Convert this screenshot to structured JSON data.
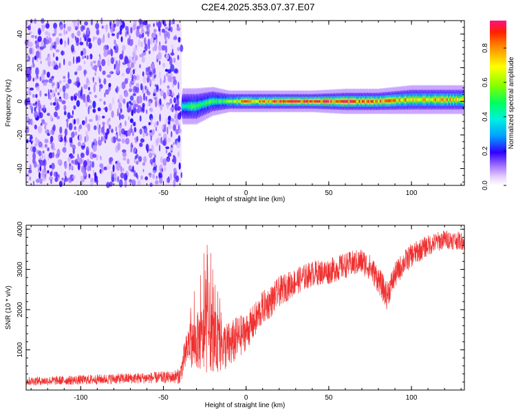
{
  "title": "C2E4.2025.353.07.37.E07",
  "chart_data": [
    {
      "type": "heatmap",
      "name": "spectrogram",
      "xlabel": "Height of straight line (km)",
      "ylabel": "Frequency (Hz)",
      "xlim": [
        -133,
        132
      ],
      "ylim": [
        -50,
        48
      ],
      "xticks": [
        -100,
        -50,
        0,
        50,
        100
      ],
      "yticks": [
        -40,
        -20,
        0,
        20,
        40
      ],
      "noise_region_x": [
        -133,
        -39
      ],
      "signal_band": [
        {
          "x": -38,
          "freq_center": -3,
          "half_width": 5,
          "amplitude": 0.45
        },
        {
          "x": -30,
          "freq_center": -3,
          "half_width": 5,
          "amplitude": 0.5
        },
        {
          "x": -20,
          "freq_center": 0,
          "half_width": 4,
          "amplitude": 0.55
        },
        {
          "x": -10,
          "freq_center": 0,
          "half_width": 3,
          "amplitude": 0.6
        },
        {
          "x": 0,
          "freq_center": 0,
          "half_width": 3,
          "amplitude": 0.85
        },
        {
          "x": 10,
          "freq_center": 0,
          "half_width": 3,
          "amplitude": 0.8
        },
        {
          "x": 20,
          "freq_center": 0,
          "half_width": 3,
          "amplitude": 0.95
        },
        {
          "x": 40,
          "freq_center": 0,
          "half_width": 3,
          "amplitude": 0.95
        },
        {
          "x": 60,
          "freq_center": 0,
          "half_width": 3.5,
          "amplitude": 0.9
        },
        {
          "x": 80,
          "freq_center": 0,
          "half_width": 3.5,
          "amplitude": 0.85
        },
        {
          "x": 100,
          "freq_center": 1,
          "half_width": 4,
          "amplitude": 0.8
        },
        {
          "x": 132,
          "freq_center": 1,
          "half_width": 4,
          "amplitude": 0.75
        }
      ]
    },
    {
      "type": "colorbar",
      "name": "colorbar",
      "label": "Normalized spectral amplitude",
      "range": [
        0.0,
        0.96
      ],
      "ticks": [
        {
          "value": 0.0,
          "label": "0.0"
        },
        {
          "value": 0.2,
          "label": "0.2"
        },
        {
          "value": 0.4,
          "label": "0.4"
        },
        {
          "value": 0.6,
          "label": "0.6"
        },
        {
          "value": 0.8,
          "label": "0.8"
        }
      ]
    },
    {
      "type": "line",
      "name": "snr",
      "xlabel": "Height of straight line (km)",
      "ylabel": "SNR (10 * v/v)",
      "xlim": [
        -133,
        132
      ],
      "ylim": [
        0,
        4100
      ],
      "xticks": [
        -100,
        -50,
        0,
        50,
        100
      ],
      "yticks": [
        1000,
        2000,
        3000,
        4000
      ],
      "color": "#f03030",
      "series": [
        {
          "name": "SNR",
          "x": [
            -133,
            -120,
            -100,
            -80,
            -60,
            -45,
            -40,
            -38,
            -35,
            -30,
            -25,
            -22,
            -20,
            -15,
            -10,
            -5,
            0,
            5,
            10,
            15,
            20,
            30,
            40,
            50,
            60,
            70,
            75,
            80,
            85,
            90,
            95,
            100,
            110,
            120,
            132
          ],
          "y": [
            220,
            230,
            250,
            280,
            300,
            320,
            350,
            700,
            1100,
            1200,
            1300,
            1500,
            1250,
            1100,
            1100,
            1300,
            1450,
            1700,
            2050,
            2200,
            2450,
            2700,
            2900,
            2950,
            3100,
            3200,
            3050,
            2750,
            2350,
            2850,
            3150,
            3350,
            3600,
            3750,
            3700
          ],
          "noise_amplitude": [
            110,
            110,
            120,
            130,
            140,
            150,
            200,
            350,
            500,
            700,
            900,
            1000,
            800,
            650,
            600,
            550,
            450,
            450,
            420,
            400,
            380,
            340,
            320,
            320,
            320,
            330,
            320,
            340,
            350,
            320,
            300,
            300,
            260,
            240,
            220
          ]
        }
      ]
    }
  ]
}
